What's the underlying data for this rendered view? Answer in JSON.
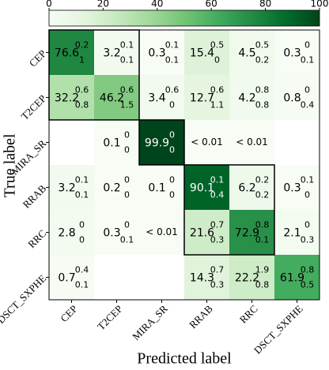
{
  "chart_data": {
    "type": "heatmap",
    "x_label": "Predicted label",
    "y_label": "True label",
    "x_categories": [
      "CEP",
      "T2CEP",
      "MIRA_SR",
      "RRAB",
      "RRC",
      "DSCT_SXPHE"
    ],
    "y_categories": [
      "CEP",
      "T2CEP",
      "MIRA_SR",
      "RRAB",
      "RRC",
      "DSCT_SXPHE"
    ],
    "values": [
      [
        76.6,
        3.2,
        0.3,
        15.4,
        4.5,
        0.3
      ],
      [
        32.2,
        46.2,
        3.4,
        12.7,
        4.2,
        0.8
      ],
      [
        null,
        0.1,
        99.9,
        0.01,
        0.01,
        null
      ],
      [
        3.2,
        0.2,
        0.1,
        90.1,
        6.2,
        0.3
      ],
      [
        2.8,
        0.3,
        0.01,
        21.6,
        72.9,
        2.1
      ],
      [
        0.7,
        null,
        null,
        14.3,
        22.2,
        61.9
      ]
    ],
    "value_labels": [
      [
        null,
        null,
        null,
        null,
        null,
        null
      ],
      [
        null,
        null,
        null,
        null,
        null,
        null
      ],
      [
        null,
        null,
        null,
        "< 0.01",
        "< 0.01",
        null
      ],
      [
        null,
        null,
        null,
        null,
        null,
        null
      ],
      [
        null,
        null,
        "< 0.01",
        null,
        null,
        null
      ],
      [
        null,
        null,
        null,
        null,
        null,
        null
      ]
    ],
    "upper": [
      [
        0.2,
        0.1,
        0.1,
        0.5,
        0.5,
        0.0
      ],
      [
        0.6,
        0.6,
        0.6,
        0.6,
        0.8,
        0.0
      ],
      [
        null,
        0.0,
        0.0,
        null,
        null,
        null
      ],
      [
        0.1,
        0.0,
        0.0,
        0.1,
        0.2,
        0.1
      ],
      [
        0.0,
        0.0,
        null,
        0.7,
        0.8,
        0.0
      ],
      [
        0.4,
        null,
        null,
        0.7,
        1.9,
        0.8
      ]
    ],
    "lower": [
      [
        1.0,
        0.1,
        0.1,
        0.0,
        0.2,
        0.1
      ],
      [
        0.8,
        1.5,
        0.0,
        1.1,
        0.8,
        0.4
      ],
      [
        null,
        0.0,
        0.0,
        null,
        null,
        null
      ],
      [
        0.1,
        0.0,
        0.0,
        0.4,
        0.2,
        0.0
      ],
      [
        0.0,
        0.1,
        null,
        0.3,
        0.1,
        0.3
      ],
      [
        0.1,
        null,
        null,
        0.3,
        0.8,
        0.5
      ]
    ],
    "clim": [
      0,
      100
    ],
    "cticks": [
      0,
      20,
      40,
      60,
      80,
      100
    ],
    "colormap": [
      "#f7fcf5",
      "#e5f5e0",
      "#c7e9c0",
      "#a1d99b",
      "#74c476",
      "#41ab5d",
      "#238b45",
      "#006d2c",
      "#00441b"
    ]
  }
}
